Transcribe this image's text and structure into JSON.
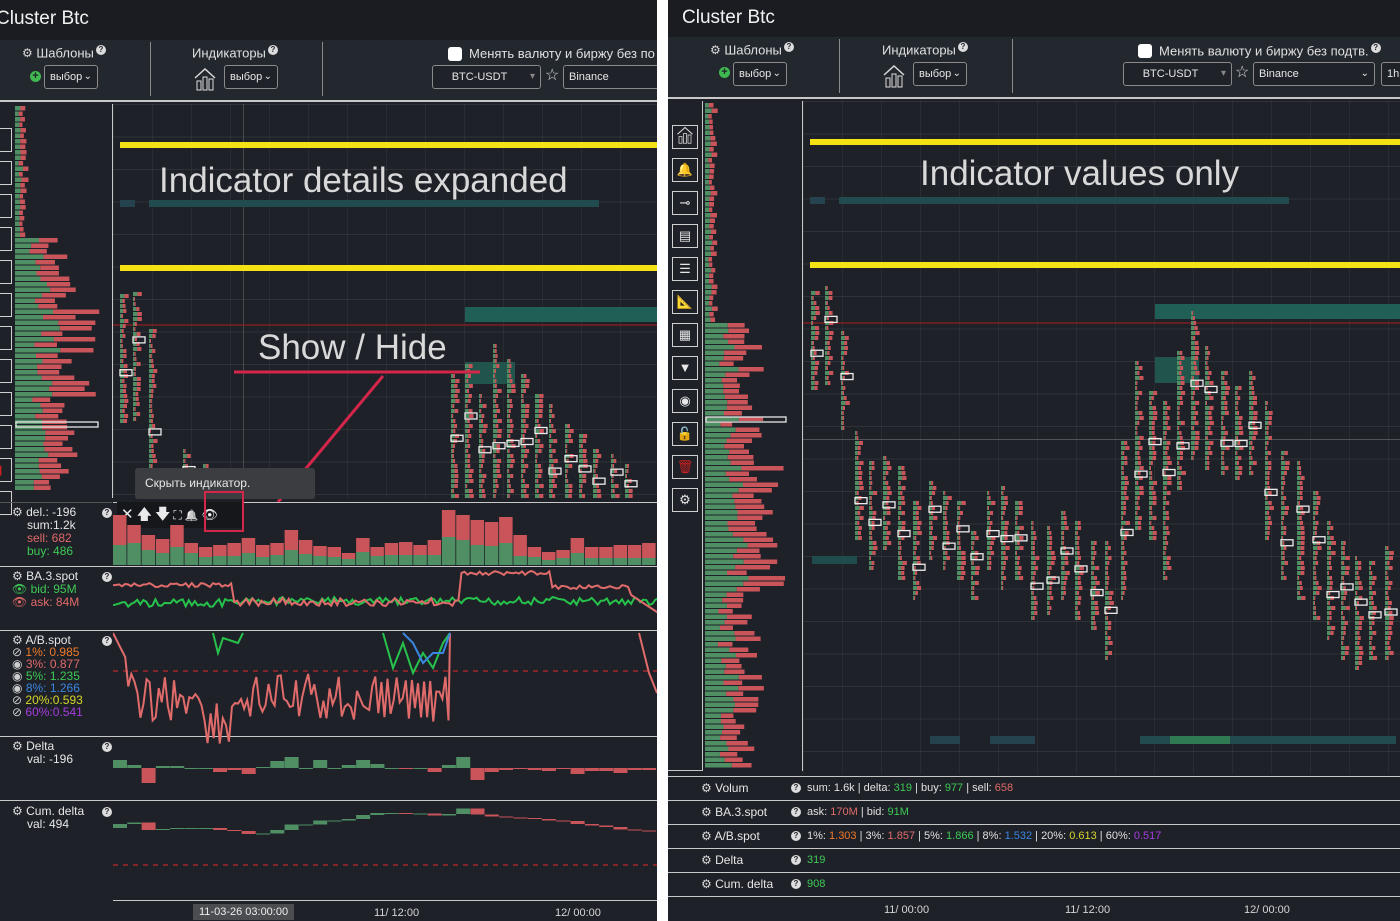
{
  "left": {
    "title": "Cluster Btc",
    "toolbar": {
      "templates_label": "Шаблоны",
      "templates_select": "выбор",
      "indicators_label": "Индикаторы",
      "indicators_select": "выбор",
      "change_currency_label": "Менять валюту и биржу без по",
      "symbol_select": "BTC-USDT",
      "exchange_select": "Binance"
    },
    "annotation_title": "Indicator details expanded",
    "annotation_showhide": "Show / Hide",
    "tooltip": "Скрыть индикатор.",
    "indicator_controls": {
      "close": "✕",
      "up": "🡅",
      "down": "🡇",
      "expand": "⛶",
      "alert": "🔔",
      "eye": "👁"
    },
    "indicators": [
      {
        "name": "del.: -196",
        "lines": [
          {
            "text": "sum:1.2k",
            "color": "white"
          },
          {
            "text": "sell:  682",
            "color": "red"
          },
          {
            "text": "buy:  486",
            "color": "green"
          }
        ]
      },
      {
        "name": "BA.3.spot",
        "lines": [
          {
            "text": "bid:  95M",
            "color": "green",
            "eye": "shown"
          },
          {
            "text": "ask:  84M",
            "color": "red",
            "eye": "shown"
          }
        ]
      },
      {
        "name": "A/B.spot",
        "lines": [
          {
            "text": "1%:  0.985",
            "color": "orange",
            "eye": "hidden"
          },
          {
            "text": "3%:  0.877",
            "color": "red",
            "eye": "shown"
          },
          {
            "text": "5%:  1.235",
            "color": "green",
            "eye": "shown"
          },
          {
            "text": "8%:  1.266",
            "color": "blue",
            "eye": "shown"
          },
          {
            "text": "20%:0.593",
            "color": "yellow",
            "eye": "hidden"
          },
          {
            "text": "60%:0.541",
            "color": "purple",
            "eye": "hidden"
          }
        ]
      },
      {
        "name": "Delta",
        "lines": [
          {
            "text": "val:  -196",
            "color": "white"
          }
        ]
      },
      {
        "name": "Cum. delta",
        "lines": [
          {
            "text": "val:  494",
            "color": "white"
          }
        ]
      }
    ],
    "time_axis": {
      "cursor_label": "11-03-26 03:00:00",
      "labels": [
        "11/ 12:00",
        "12/ 00:00"
      ]
    }
  },
  "right": {
    "title": "Cluster Btc",
    "toolbar": {
      "templates_label": "Шаблоны",
      "templates_select": "выбор",
      "indicators_label": "Индикаторы",
      "indicators_select": "выбор",
      "change_currency_label": "Менять валюту и биржу без подтв.",
      "symbol_select": "BTC-USDT",
      "exchange_select": "Binance",
      "timeframe_select": "1h"
    },
    "annotation_title": "Indicator values only",
    "tools": [
      "indicators-icon",
      "bell-icon",
      "slider-icon",
      "profile-icon",
      "lines-icon",
      "ruler-icon",
      "calendar-icon",
      "filter-icon",
      "eye-icon",
      "unlock-icon",
      "trash-icon",
      "gear-icon"
    ],
    "indicator_rows": [
      {
        "name": "Volum",
        "parts": [
          {
            "t": "sum: 1.6k | delta: ",
            "c": "white"
          },
          {
            "t": "319",
            "c": "green"
          },
          {
            "t": " | buy: ",
            "c": "white"
          },
          {
            "t": "977",
            "c": "green"
          },
          {
            "t": " | sell: ",
            "c": "white"
          },
          {
            "t": "658",
            "c": "red"
          }
        ]
      },
      {
        "name": "BA.3.spot",
        "parts": [
          {
            "t": "ask: ",
            "c": "white"
          },
          {
            "t": "170M",
            "c": "red"
          },
          {
            "t": " | bid: ",
            "c": "white"
          },
          {
            "t": "91M",
            "c": "green"
          }
        ]
      },
      {
        "name": "A/B.spot",
        "parts": [
          {
            "t": "1%: ",
            "c": "white"
          },
          {
            "t": "1.303",
            "c": "orange"
          },
          {
            "t": " | 3%: ",
            "c": "white"
          },
          {
            "t": "1.857",
            "c": "red"
          },
          {
            "t": " | 5%: ",
            "c": "white"
          },
          {
            "t": "1.866",
            "c": "green"
          },
          {
            "t": " | 8%: ",
            "c": "white"
          },
          {
            "t": "1.532",
            "c": "blue"
          },
          {
            "t": " | 20%: ",
            "c": "white"
          },
          {
            "t": "0.613",
            "c": "yellow"
          },
          {
            "t": " | 60%: ",
            "c": "white"
          },
          {
            "t": "0.517",
            "c": "purple"
          }
        ]
      },
      {
        "name": "Delta",
        "parts": [
          {
            "t": "319",
            "c": "green"
          }
        ]
      },
      {
        "name": "Cum. delta",
        "parts": [
          {
            "t": "908",
            "c": "green"
          }
        ]
      }
    ],
    "time_axis": {
      "labels": [
        "11/ 00:00",
        "11/ 12:00",
        "12/ 00:00"
      ]
    }
  },
  "colors": {
    "background": "#1e2128",
    "buy_green": "#4f8f63",
    "sell_red": "#c9545a",
    "yellow_level": "#f5e214",
    "annotation_red": "#d4264a"
  }
}
